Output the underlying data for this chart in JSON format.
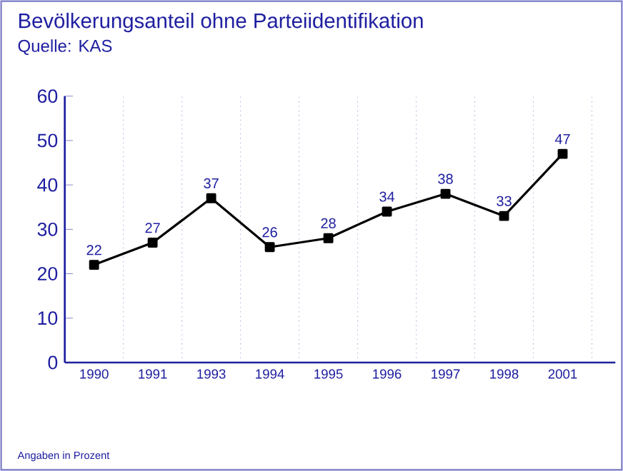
{
  "chart_data": {
    "type": "line",
    "title": "Bevölkerungsanteil ohne Parteiidentifikation",
    "subtitle": "Quelle: KAS",
    "categories": [
      "1990",
      "1991",
      "1993",
      "1994",
      "1995",
      "1996",
      "1997",
      "1998",
      "2001"
    ],
    "series": [
      {
        "color": "#000000",
        "values": [
          22,
          27,
          37,
          26,
          28,
          34,
          38,
          33,
          47
        ]
      }
    ],
    "ylim": [
      0,
      60
    ],
    "yticks": [
      0,
      10,
      20,
      30,
      40,
      50,
      60
    ],
    "grid": "x",
    "marker": "square",
    "line_style": "solid",
    "data_labels": true,
    "annotations": [
      "Angaben in Prozent"
    ]
  }
}
